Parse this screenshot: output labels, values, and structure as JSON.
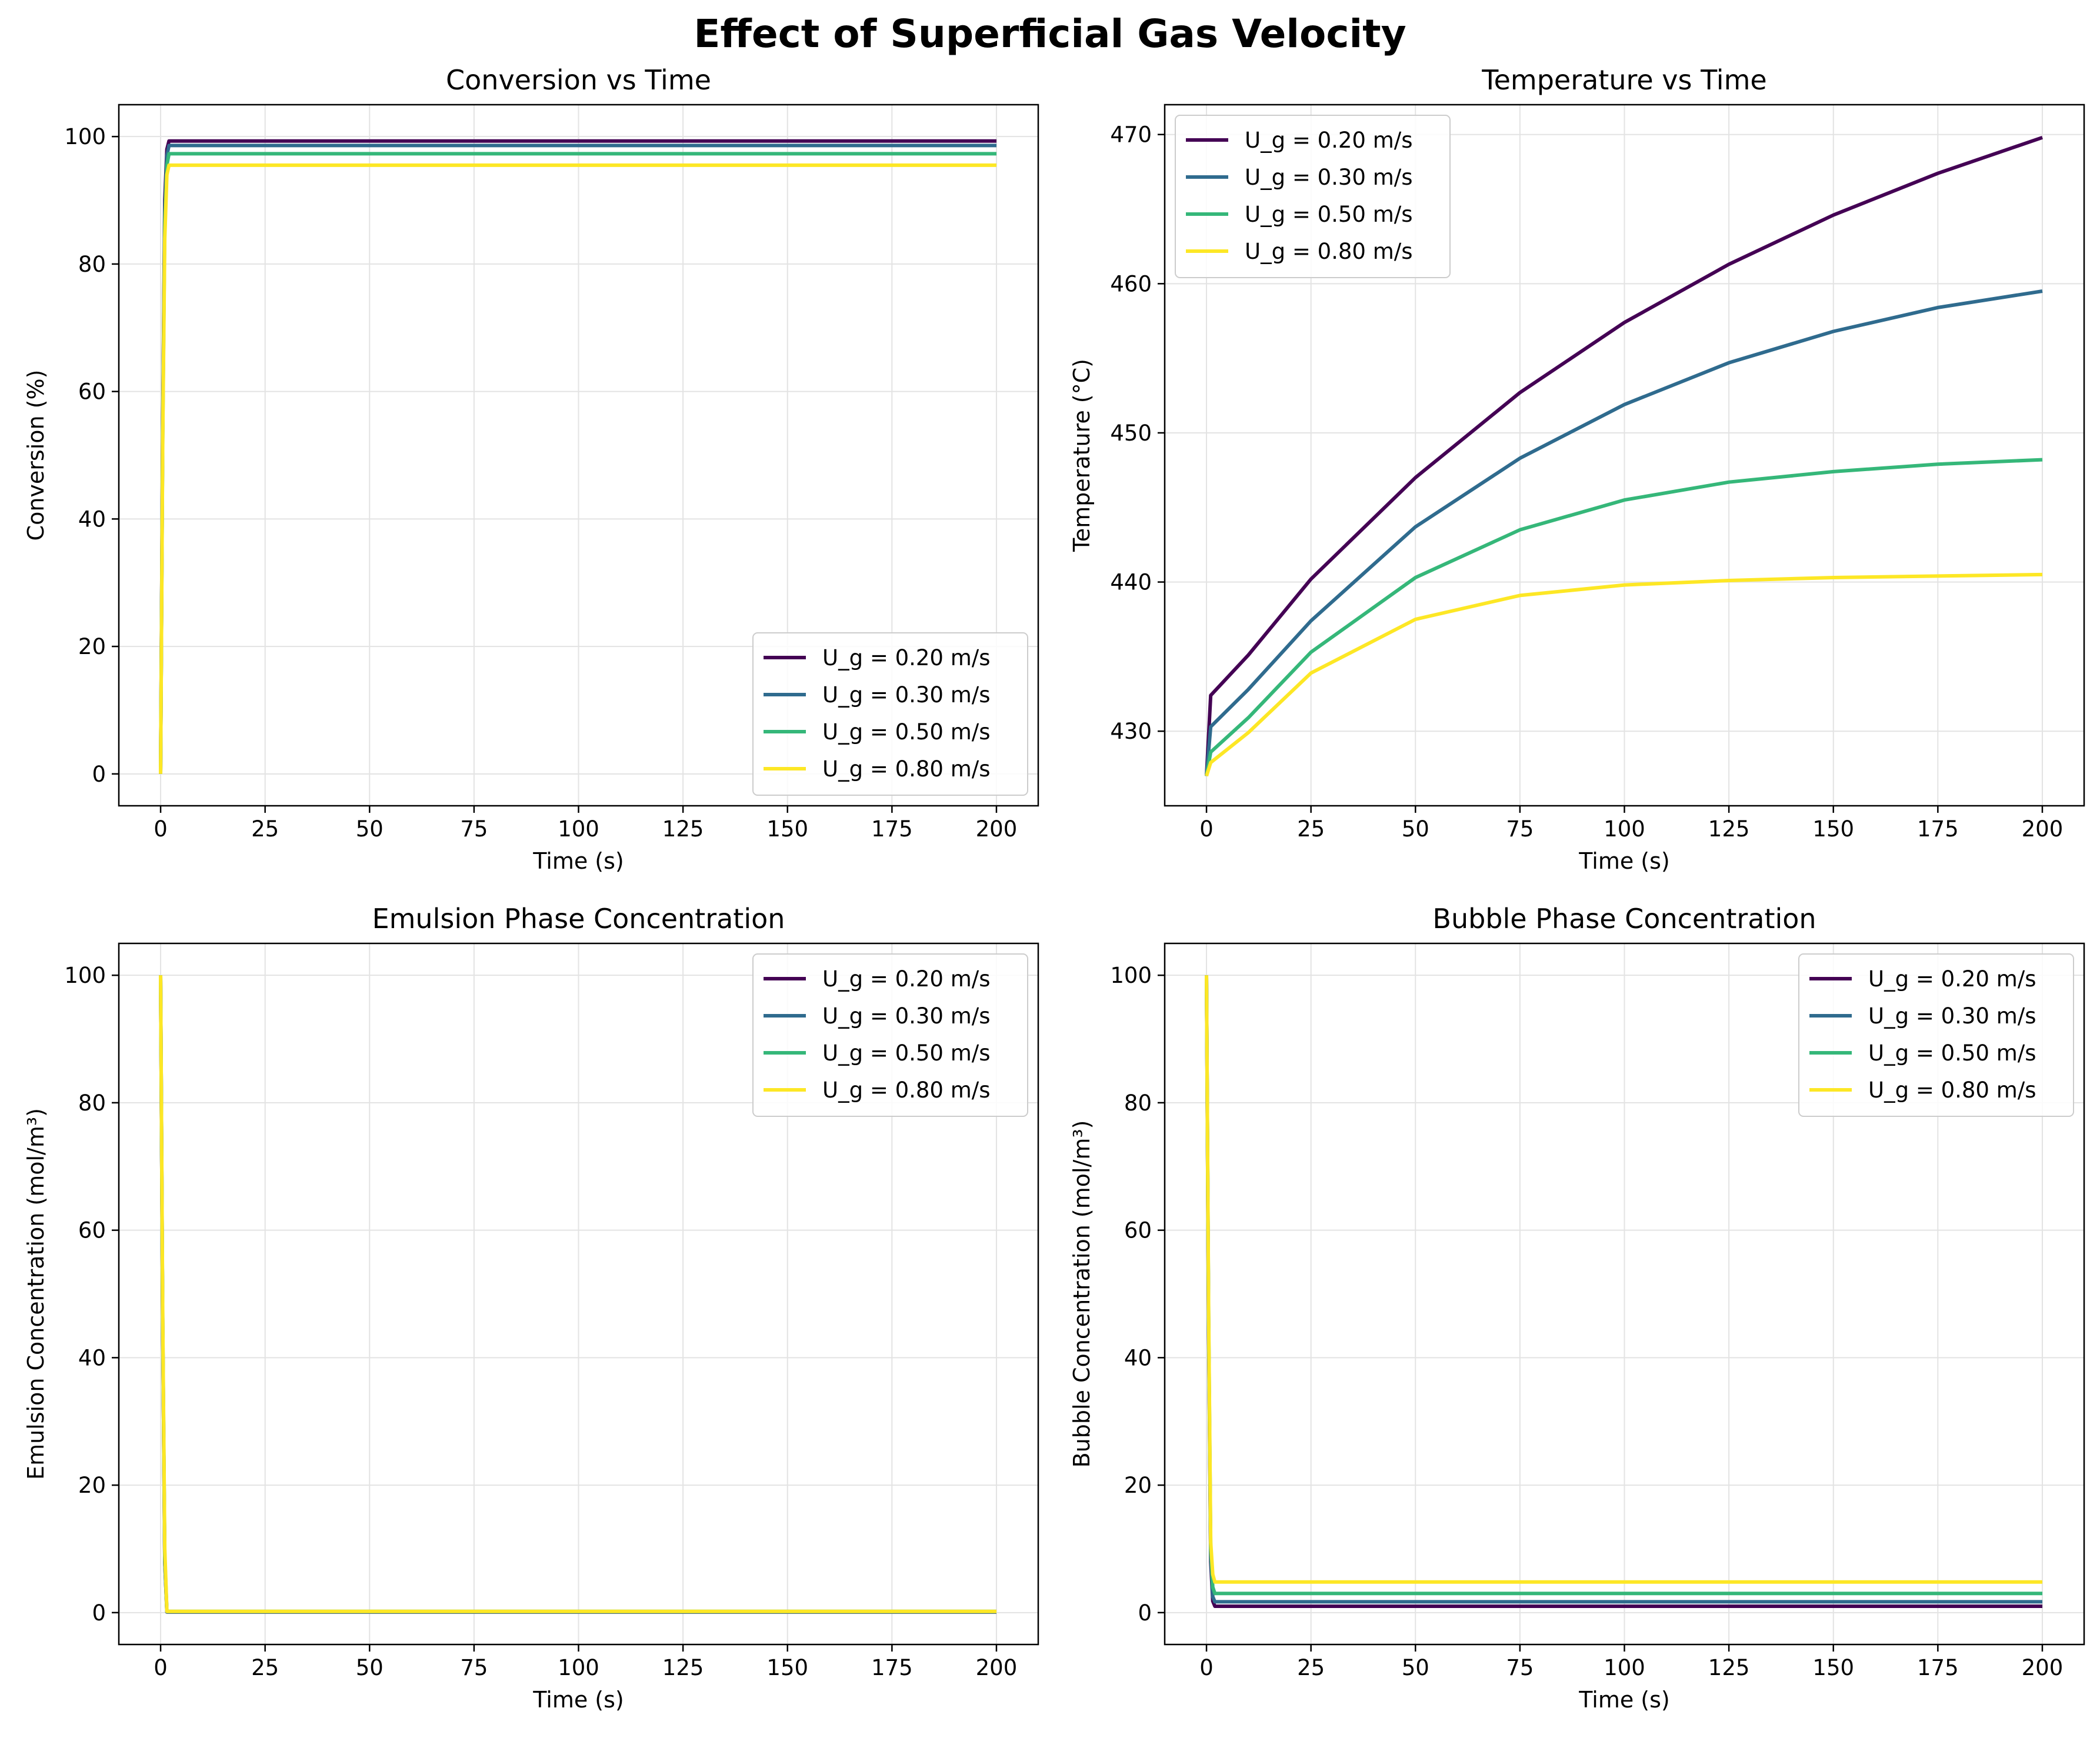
{
  "figure": {
    "suptitle": "Effect of Superficial Gas Velocity"
  },
  "colors": {
    "U_g = 0.20 m/s": "#440154",
    "U_g = 0.30 m/s": "#2f6b8e",
    "U_g = 0.50 m/s": "#35b779",
    "U_g = 0.80 m/s": "#fde725"
  },
  "chart_data": [
    {
      "type": "line",
      "title": "Conversion vs Time",
      "xlabel": "Time (s)",
      "ylabel": "Conversion (%)",
      "xlim": [
        -10,
        210
      ],
      "ylim": [
        -5,
        105
      ],
      "xticks": [
        0,
        25,
        50,
        75,
        100,
        125,
        150,
        175,
        200
      ],
      "yticks": [
        0,
        20,
        40,
        60,
        80,
        100
      ],
      "grid": true,
      "legend_position": "lower-right",
      "series": [
        {
          "name": "U_g = 0.20 m/s",
          "x": [
            0,
            0.5,
            1,
            1.5,
            2,
            200
          ],
          "values": [
            0,
            55,
            90,
            98,
            99.3,
            99.3
          ]
        },
        {
          "name": "U_g = 0.30 m/s",
          "x": [
            0,
            0.5,
            1,
            1.5,
            2,
            200
          ],
          "values": [
            0,
            54,
            88,
            97,
            98.6,
            98.6
          ]
        },
        {
          "name": "U_g = 0.50 m/s",
          "x": [
            0,
            0.5,
            1,
            1.5,
            2,
            200
          ],
          "values": [
            0,
            53,
            86,
            95.5,
            97.3,
            97.3
          ]
        },
        {
          "name": "U_g = 0.80 m/s",
          "x": [
            0,
            0.5,
            1,
            1.5,
            2,
            200
          ],
          "values": [
            0,
            52,
            84,
            94,
            95.5,
            95.5
          ]
        }
      ]
    },
    {
      "type": "line",
      "title": "Temperature vs Time",
      "xlabel": "Time (s)",
      "ylabel": "Temperature (°C)",
      "xlim": [
        -10,
        210
      ],
      "ylim": [
        425,
        472
      ],
      "xticks": [
        0,
        25,
        50,
        75,
        100,
        125,
        150,
        175,
        200
      ],
      "yticks": [
        430,
        440,
        450,
        460,
        470
      ],
      "grid": true,
      "legend_position": "upper-left",
      "series": [
        {
          "name": "U_g = 0.20 m/s",
          "x": [
            0,
            1,
            10,
            25,
            50,
            75,
            100,
            125,
            150,
            175,
            200
          ],
          "values": [
            427,
            432.4,
            435.1,
            440.2,
            447.0,
            452.7,
            457.4,
            461.3,
            464.6,
            467.4,
            469.8
          ]
        },
        {
          "name": "U_g = 0.30 m/s",
          "x": [
            0,
            1,
            10,
            25,
            50,
            75,
            100,
            125,
            150,
            175,
            200
          ],
          "values": [
            427,
            430.3,
            432.8,
            437.4,
            443.7,
            448.3,
            451.9,
            454.7,
            456.8,
            458.4,
            459.5
          ]
        },
        {
          "name": "U_g = 0.50 m/s",
          "x": [
            0,
            1,
            10,
            25,
            50,
            75,
            100,
            125,
            150,
            175,
            200
          ],
          "values": [
            427,
            428.6,
            430.9,
            435.3,
            440.3,
            443.5,
            445.5,
            446.7,
            447.4,
            447.9,
            448.2
          ]
        },
        {
          "name": "U_g = 0.80 m/s",
          "x": [
            0,
            1,
            10,
            25,
            50,
            75,
            100,
            125,
            150,
            175,
            200
          ],
          "values": [
            427,
            427.9,
            429.9,
            433.9,
            437.5,
            439.1,
            439.8,
            440.1,
            440.3,
            440.4,
            440.5
          ]
        }
      ]
    },
    {
      "type": "line",
      "title": "Emulsion Phase Concentration",
      "xlabel": "Time (s)",
      "ylabel": "Emulsion Concentration (mol/m³)",
      "xlim": [
        -10,
        210
      ],
      "ylim": [
        -5,
        105
      ],
      "xticks": [
        0,
        25,
        50,
        75,
        100,
        125,
        150,
        175,
        200
      ],
      "yticks": [
        0,
        20,
        40,
        60,
        80,
        100
      ],
      "grid": true,
      "legend_position": "upper-right",
      "series": [
        {
          "name": "U_g = 0.20 m/s",
          "x": [
            0,
            0.5,
            1,
            1.5,
            200
          ],
          "values": [
            100,
            45,
            8,
            0.1,
            0.1
          ]
        },
        {
          "name": "U_g = 0.30 m/s",
          "x": [
            0,
            0.5,
            1,
            1.5,
            200
          ],
          "values": [
            100,
            45,
            8,
            0.1,
            0.1
          ]
        },
        {
          "name": "U_g = 0.50 m/s",
          "x": [
            0,
            0.5,
            1,
            1.5,
            200
          ],
          "values": [
            100,
            46,
            9,
            0.2,
            0.2
          ]
        },
        {
          "name": "U_g = 0.80 m/s",
          "x": [
            0,
            0.5,
            1,
            1.5,
            200
          ],
          "values": [
            100,
            47,
            10,
            0.2,
            0.2
          ]
        }
      ]
    },
    {
      "type": "line",
      "title": "Bubble Phase Concentration",
      "xlabel": "Time (s)",
      "ylabel": "Bubble Concentration (mol/m³)",
      "xlim": [
        -10,
        210
      ],
      "ylim": [
        -5,
        105
      ],
      "xticks": [
        0,
        25,
        50,
        75,
        100,
        125,
        150,
        175,
        200
      ],
      "yticks": [
        0,
        20,
        40,
        60,
        80,
        100
      ],
      "grid": true,
      "legend_position": "upper-right",
      "series": [
        {
          "name": "U_g = 0.20 m/s",
          "x": [
            0,
            0.5,
            1,
            1.5,
            2,
            200
          ],
          "values": [
            100,
            45,
            8,
            1.8,
            1.0,
            1.0
          ]
        },
        {
          "name": "U_g = 0.30 m/s",
          "x": [
            0,
            0.5,
            1,
            1.5,
            2,
            200
          ],
          "values": [
            100,
            46,
            9,
            2.5,
            1.7,
            1.7
          ]
        },
        {
          "name": "U_g = 0.50 m/s",
          "x": [
            0,
            0.5,
            1,
            1.5,
            2,
            200
          ],
          "values": [
            100,
            47,
            10,
            4.0,
            3.0,
            3.0
          ]
        },
        {
          "name": "U_g = 0.80 m/s",
          "x": [
            0,
            0.5,
            1,
            1.5,
            2,
            200
          ],
          "values": [
            100,
            48,
            11,
            6.0,
            4.8,
            4.8
          ]
        }
      ]
    }
  ]
}
